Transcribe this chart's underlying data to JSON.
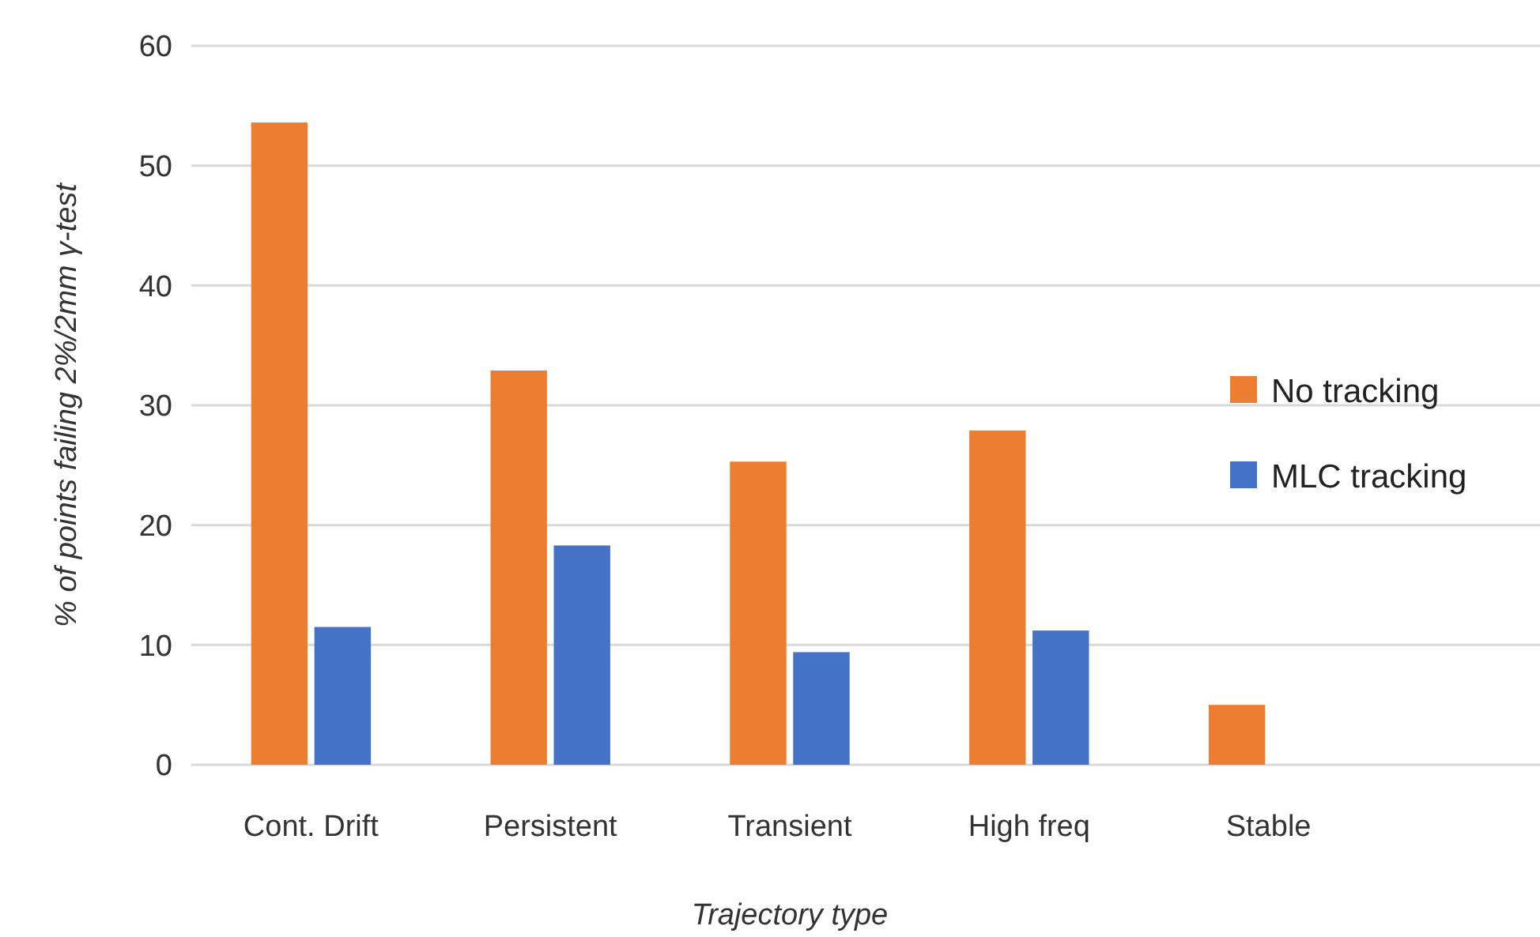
{
  "chart_data": {
    "type": "bar",
    "xlabel": "Trajectory type",
    "ylabel": "% of points failing 2%/2mm γ-test",
    "categories": [
      "Cont. Drift",
      "Persistent",
      "Transient",
      "High freq",
      "Stable"
    ],
    "series": [
      {
        "name": "No tracking",
        "color": "#ed7d31",
        "values": [
          53.6,
          32.9,
          25.3,
          27.9,
          5.0
        ]
      },
      {
        "name": "MLC tracking",
        "color": "#4472c4",
        "values": [
          11.5,
          18.3,
          9.4,
          11.2,
          null
        ]
      }
    ],
    "ylim": [
      0,
      60
    ],
    "yticks": [
      0,
      10,
      20,
      30,
      40,
      50,
      60
    ],
    "grid": "y",
    "legend": "right"
  }
}
